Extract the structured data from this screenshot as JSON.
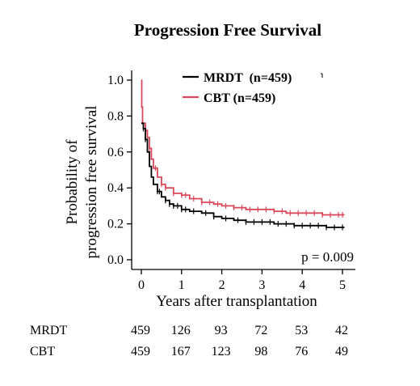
{
  "chart_data": {
    "type": "line",
    "title": "Progression Free Survival",
    "xlabel": "Years after transplantation",
    "ylabel": "Probability of progression free survival",
    "xlim": [
      0,
      5
    ],
    "ylim": [
      0,
      1
    ],
    "x_ticks": [
      "0",
      "1",
      "2",
      "3",
      "4",
      "5"
    ],
    "y_ticks": [
      "0.0",
      "0.2",
      "0.4",
      "0.6",
      "0.8",
      "1.0"
    ],
    "legend_position": "top-right",
    "grid": false,
    "annotation": "p = 0.009",
    "series": [
      {
        "name": "MRDT  (n=459)",
        "color": "#000000",
        "points": [
          [
            0,
            0.76
          ],
          [
            0.05,
            0.73
          ],
          [
            0.1,
            0.67
          ],
          [
            0.15,
            0.6
          ],
          [
            0.2,
            0.52
          ],
          [
            0.25,
            0.46
          ],
          [
            0.3,
            0.42
          ],
          [
            0.4,
            0.38
          ],
          [
            0.5,
            0.35
          ],
          [
            0.6,
            0.33
          ],
          [
            0.7,
            0.31
          ],
          [
            0.8,
            0.3
          ],
          [
            1.0,
            0.28
          ],
          [
            1.2,
            0.27
          ],
          [
            1.5,
            0.26
          ],
          [
            1.8,
            0.24
          ],
          [
            2.0,
            0.23
          ],
          [
            2.3,
            0.22
          ],
          [
            2.6,
            0.21
          ],
          [
            3.0,
            0.21
          ],
          [
            3.3,
            0.2
          ],
          [
            3.6,
            0.2
          ],
          [
            3.8,
            0.19
          ],
          [
            4.0,
            0.19
          ],
          [
            4.5,
            0.19
          ],
          [
            4.6,
            0.18
          ],
          [
            5.05,
            0.18
          ]
        ],
        "censor_x": [
          0.05,
          0.1,
          0.4,
          0.45,
          0.6,
          0.7,
          0.8,
          0.9,
          1.0,
          1.1,
          1.3,
          1.6,
          1.8,
          2.1,
          2.4,
          2.6,
          2.8,
          3.0,
          3.2,
          3.4,
          3.6,
          3.8,
          4.0,
          4.2,
          4.4,
          4.6,
          4.8,
          5.0
        ]
      },
      {
        "name": "CBT (n=459)",
        "color": "#d9485a",
        "points": [
          [
            0,
            1.0
          ],
          [
            0.01,
            0.85
          ],
          [
            0.03,
            0.76
          ],
          [
            0.1,
            0.72
          ],
          [
            0.15,
            0.68
          ],
          [
            0.2,
            0.62
          ],
          [
            0.25,
            0.56
          ],
          [
            0.3,
            0.51
          ],
          [
            0.4,
            0.46
          ],
          [
            0.5,
            0.42
          ],
          [
            0.6,
            0.4
          ],
          [
            0.8,
            0.37
          ],
          [
            1.0,
            0.36
          ],
          [
            1.2,
            0.34
          ],
          [
            1.5,
            0.32
          ],
          [
            1.8,
            0.31
          ],
          [
            2.0,
            0.3
          ],
          [
            2.3,
            0.29
          ],
          [
            2.6,
            0.28
          ],
          [
            3.0,
            0.28
          ],
          [
            3.3,
            0.27
          ],
          [
            3.5,
            0.27
          ],
          [
            3.6,
            0.26
          ],
          [
            4.0,
            0.26
          ],
          [
            4.5,
            0.25
          ],
          [
            5.05,
            0.25
          ]
        ],
        "censor_x": [
          0.1,
          0.2,
          0.35,
          0.5,
          0.6,
          0.8,
          1.0,
          1.1,
          1.3,
          1.5,
          1.7,
          1.9,
          2.1,
          2.3,
          2.5,
          2.7,
          2.9,
          3.1,
          3.3,
          3.5,
          3.7,
          3.9,
          4.1,
          4.3,
          4.5,
          4.7,
          4.9,
          5.0
        ]
      }
    ],
    "risk_table": {
      "times": [
        0,
        1,
        2,
        3,
        4,
        5
      ],
      "rows": [
        {
          "label": "MRDT",
          "values": [
            "459",
            "126",
            "93",
            "72",
            "53",
            "42"
          ]
        },
        {
          "label": "CBT",
          "values": [
            "459",
            "167",
            "123",
            "98",
            "76",
            "49"
          ]
        }
      ]
    }
  }
}
